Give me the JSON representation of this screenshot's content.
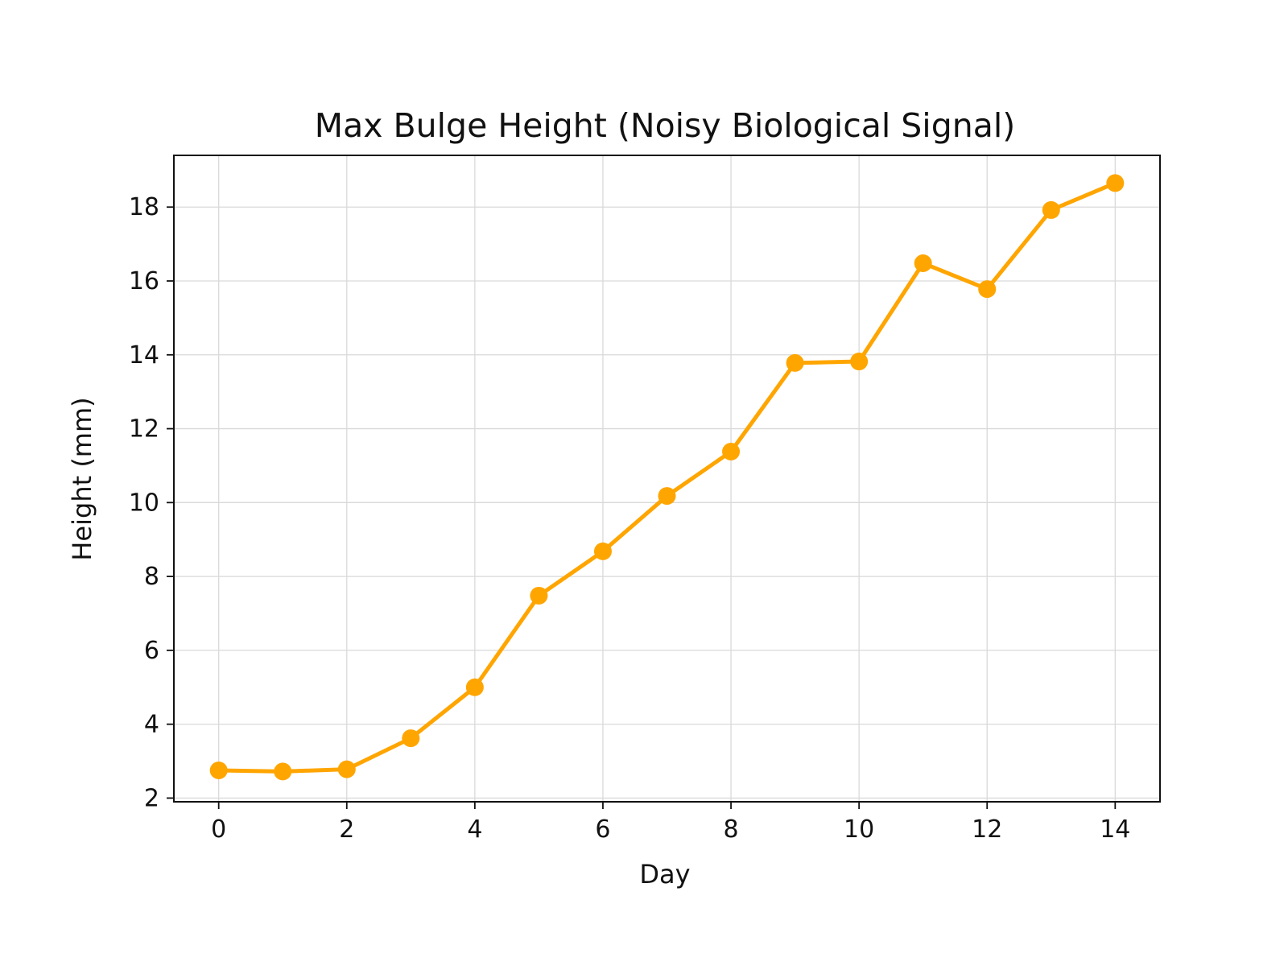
{
  "chart_data": {
    "type": "line",
    "title": "Max Bulge Height (Noisy Biological Signal)",
    "xlabel": "Day",
    "ylabel": "Height (mm)",
    "xlim": [
      -0.7,
      14.7
    ],
    "ylim": [
      1.9,
      19.4
    ],
    "grid": true,
    "x": [
      0,
      1,
      2,
      3,
      4,
      5,
      6,
      7,
      8,
      9,
      10,
      11,
      12,
      13,
      14
    ],
    "x_ticks": [
      0,
      2,
      4,
      6,
      8,
      10,
      12,
      14
    ],
    "y_ticks": [
      2,
      4,
      6,
      8,
      10,
      12,
      14,
      16,
      18
    ],
    "series": [
      {
        "values": [
          2.75,
          2.72,
          2.78,
          3.62,
          5.0,
          7.48,
          8.68,
          10.18,
          11.38,
          13.78,
          13.82,
          16.48,
          15.78,
          17.92,
          18.65
        ],
        "color": "#ffa500"
      }
    ]
  }
}
